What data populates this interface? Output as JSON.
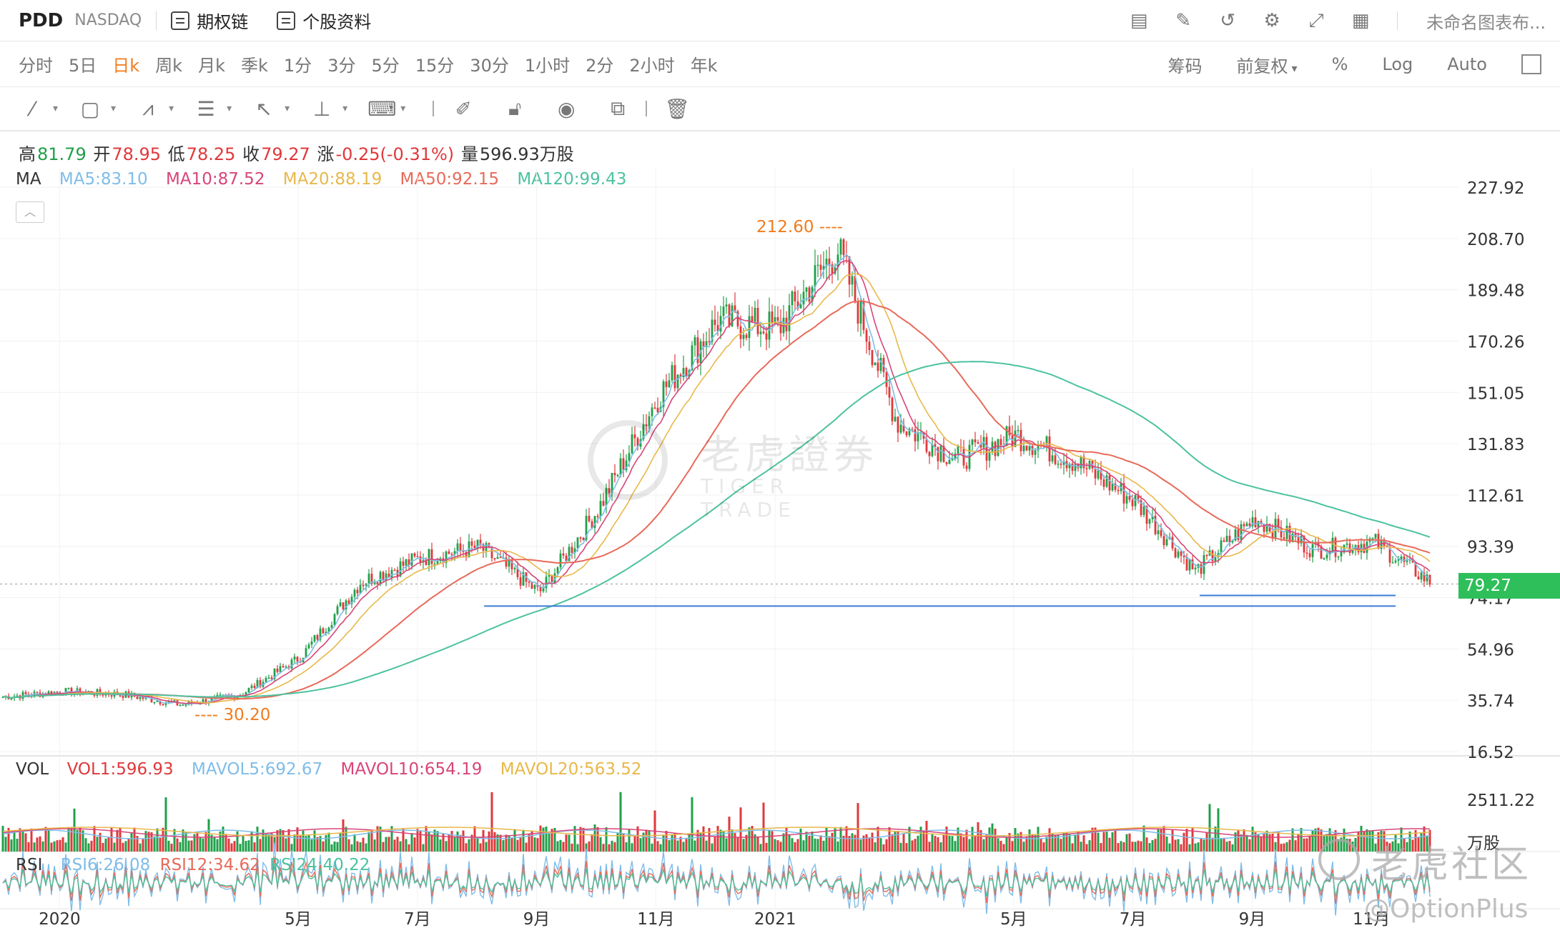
{
  "header": {
    "ticker": "PDD",
    "exchange": "NASDAQ",
    "options_chain": "期权链",
    "stock_profile": "个股资料",
    "chart_name": "未命名图表布..."
  },
  "periods": [
    "分时",
    "5日",
    "日k",
    "周k",
    "月k",
    "季k",
    "1分",
    "3分",
    "5分",
    "15分",
    "30分",
    "1小时",
    "2分",
    "2小时",
    "年k"
  ],
  "active_period": "日k",
  "period_options": {
    "chips": "筹码",
    "adjust": "前复权",
    "percent": "%",
    "log": "Log",
    "auto": "Auto"
  },
  "quote": {
    "high_label": "高",
    "high": "81.79",
    "open_label": "开",
    "open": "78.95",
    "low_label": "低",
    "low": "78.25",
    "close_label": "收",
    "close": "79.27",
    "change_label": "涨",
    "change": "-0.25(-0.31%)",
    "volume_label": "量",
    "volume": "596.93万股"
  },
  "ma_legend": {
    "label": "MA",
    "ma5": "MA5:83.10",
    "ma10": "MA10:87.52",
    "ma20": "MA20:88.19",
    "ma50": "MA50:92.15",
    "ma120": "MA120:99.43"
  },
  "vol_legend": {
    "label": "VOL",
    "vol1": "VOL1:596.93",
    "mavol5": "MAVOL5:692.67",
    "mavol10": "MAVOL10:654.19",
    "mavol20": "MAVOL20:563.52"
  },
  "rsi_legend": {
    "label": "RSI",
    "rsi6": "RSI6:26.08",
    "rsi12": "RSI12:34.62",
    "rsi24": "RSI24:40.22"
  },
  "last_price": "79.27",
  "watermarks": {
    "center_cn": "老虎證券",
    "center_en": "TIGER TRADE",
    "corner_brand": "老虎社区",
    "corner_handle": "@OptionPlus"
  },
  "colors": {
    "up": "#20a04a",
    "down": "#e0383b",
    "ma5": "#7fbde8",
    "ma10": "#d8457a",
    "ma20": "#e8b84a",
    "ma50": "#e86a5a",
    "ma120": "#4cc2a0",
    "annotation": "#f07c1e",
    "support": "#3a7bd5",
    "accent": "#f07c1e"
  },
  "chart_data": {
    "type": "candlestick",
    "y_ticks": [
      "227.92",
      "208.70",
      "189.48",
      "170.26",
      "151.05",
      "131.83",
      "112.61",
      "93.39",
      "74.17",
      "54.96",
      "35.74",
      "16.52"
    ],
    "y_range": [
      16.52,
      227.92
    ],
    "x_ticks": [
      "2020",
      "5月",
      "7月",
      "9月",
      "11月",
      "2021",
      "5月",
      "7月",
      "9月",
      "11月"
    ],
    "volume_ticks": [
      "2511.22",
      "万股"
    ],
    "annotations": [
      {
        "label": "212.60",
        "type": "high"
      },
      {
        "label": "30.20",
        "type": "low"
      }
    ],
    "price_path": [
      {
        "t": "2019-12",
        "p": 37
      },
      {
        "t": "2020-01",
        "p": 39
      },
      {
        "t": "2020-02",
        "p": 38
      },
      {
        "t": "2020-03",
        "p": 34
      },
      {
        "t": "2020-04",
        "p": 38
      },
      {
        "t": "2020-05",
        "p": 52
      },
      {
        "t": "2020-06",
        "p": 80
      },
      {
        "t": "2020-07",
        "p": 89
      },
      {
        "t": "2020-08",
        "p": 93
      },
      {
        "t": "2020-09",
        "p": 76
      },
      {
        "t": "2020-10",
        "p": 108
      },
      {
        "t": "2020-11",
        "p": 150
      },
      {
        "t": "2020-12",
        "p": 178
      },
      {
        "t": "2021-01",
        "p": 175
      },
      {
        "t": "2021-02",
        "p": 205
      },
      {
        "t": "2021-03",
        "p": 140
      },
      {
        "t": "2021-04",
        "p": 126
      },
      {
        "t": "2021-05",
        "p": 135
      },
      {
        "t": "2021-06",
        "p": 125
      },
      {
        "t": "2021-07",
        "p": 110
      },
      {
        "t": "2021-08",
        "p": 84
      },
      {
        "t": "2021-09",
        "p": 104
      },
      {
        "t": "2021-10",
        "p": 92
      },
      {
        "t": "2021-11",
        "p": 95
      },
      {
        "t": "2021-12",
        "p": 79
      }
    ],
    "support_lines": [
      {
        "from": "2020-08",
        "to": "2021-12",
        "value": 71
      },
      {
        "from": "2021-08",
        "to": "2021-12",
        "value": 75
      }
    ],
    "series": [
      {
        "name": "MA5"
      },
      {
        "name": "MA10"
      },
      {
        "name": "MA20"
      },
      {
        "name": "MA50"
      },
      {
        "name": "MA120"
      }
    ]
  }
}
